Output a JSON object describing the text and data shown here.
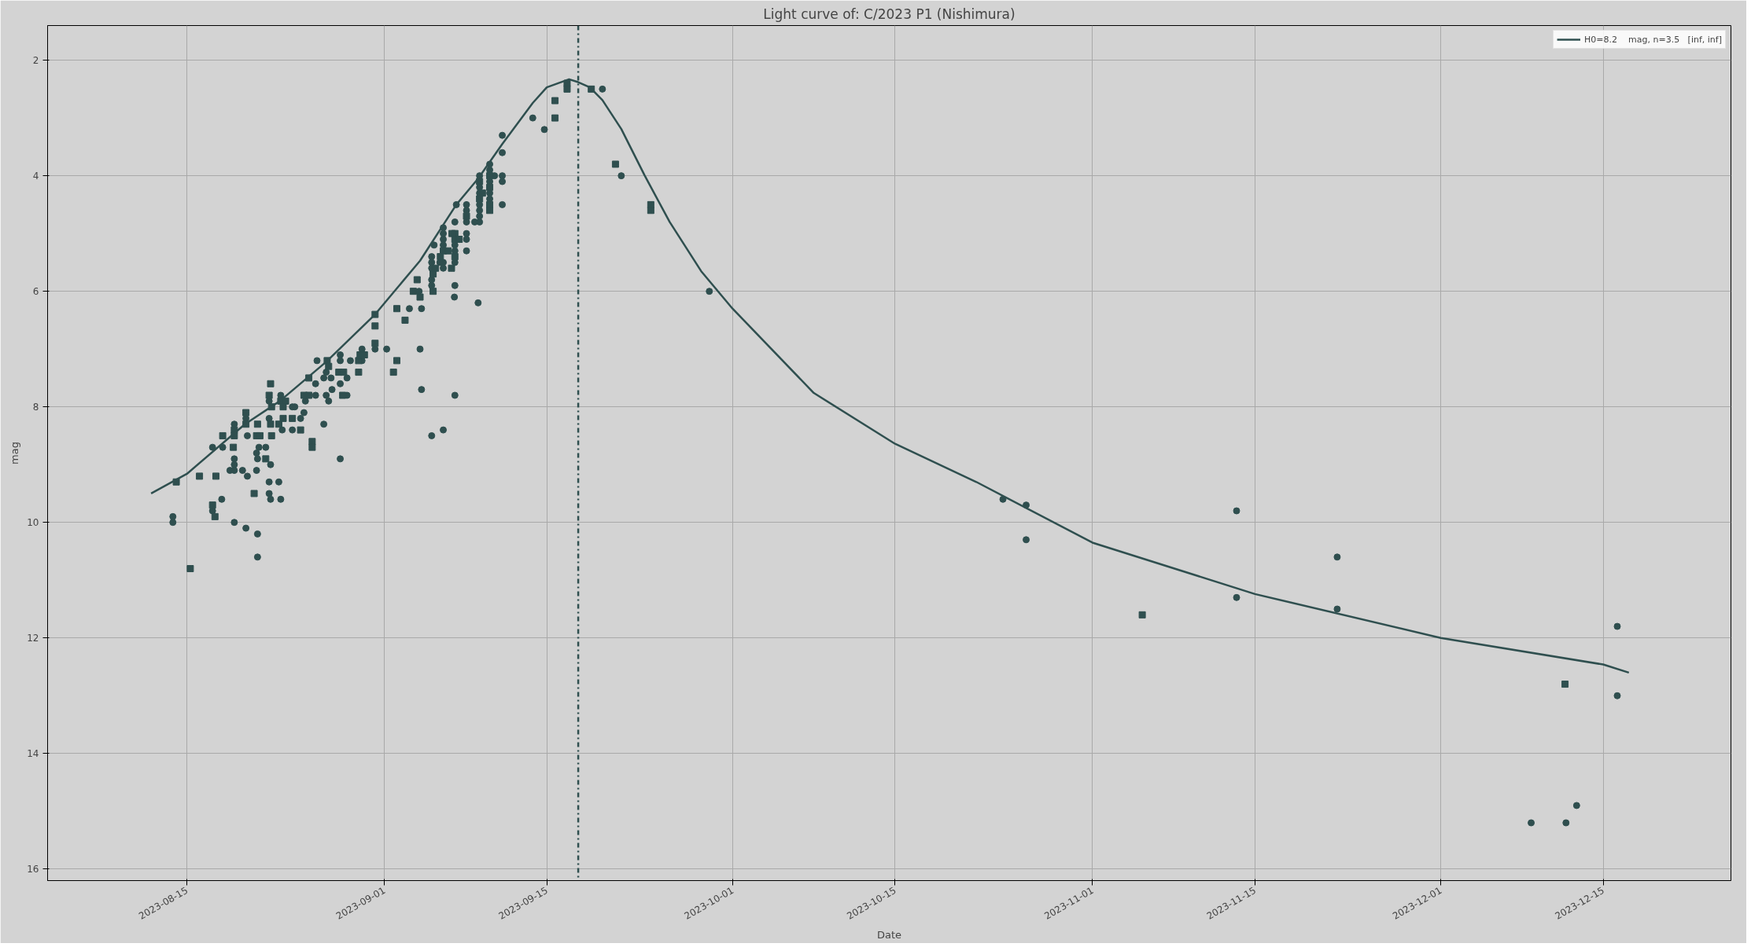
{
  "chart_data": {
    "type": "scatter",
    "title": "Light curve of: C/2023 P1 (Nishimura)",
    "xlabel": "Date",
    "ylabel": "mag",
    "xlim": [
      "2023-08-03",
      "2023-12-26"
    ],
    "xticks": [
      "2023-08-15",
      "2023-09-01",
      "2023-09-15",
      "2023-10-01",
      "2023-10-15",
      "2023-11-01",
      "2023-11-15",
      "2023-12-01",
      "2023-12-15"
    ],
    "ylim": [
      16.2,
      1.4
    ],
    "yticks": [
      2,
      4,
      6,
      8,
      10,
      12,
      14,
      16
    ],
    "grid": true,
    "legend": "top right",
    "ref_lines": [
      {
        "axis": "x",
        "value": "2023-09-17T17:00",
        "color": "#2f4f4f",
        "line_style": "dashdot"
      }
    ],
    "series": [
      {
        "marker": "circle",
        "color": "#2f4f4f",
        "x": [
          "2023-08-13T19:00",
          "2023-08-13T19:00",
          "2023-08-17T05:00",
          "2023-08-17T05:00",
          "2023-08-18T00:00",
          "2023-08-18T02:00",
          "2023-08-19T02:00",
          "2023-08-19T02:00",
          "2023-08-19T02:00",
          "2023-08-18T17:00",
          "2023-08-19T02:00",
          "2023-08-19T02:00",
          "2023-08-19T19:00",
          "2023-08-20T05:00",
          "2023-08-20T02:00",
          "2023-08-20T05:00",
          "2023-08-20T02:00",
          "2023-08-21T05:00",
          "2023-08-21T00:00",
          "2023-08-21T02:00",
          "2023-08-21T00:00",
          "2023-08-21T02:00",
          "2023-08-21T02:00",
          "2023-08-22T02:00",
          "2023-08-22T02:00",
          "2023-08-21T19:00",
          "2023-08-22T05:00",
          "2023-08-22T02:00",
          "2023-08-22T22:00",
          "2023-08-22T02:00",
          "2023-08-22T05:00",
          "2023-08-23T02:00",
          "2023-08-23T02:00",
          "2023-08-23T05:00",
          "2023-08-24T02:00",
          "2023-08-24T07:00",
          "2023-08-24T19:00",
          "2023-08-24T02:00",
          "2023-08-25T02:00",
          "2023-08-25T05:00",
          "2023-08-26T02:00",
          "2023-08-26T02:00",
          "2023-08-26T05:00",
          "2023-08-26T19:00",
          "2023-08-27T00:00",
          "2023-08-26T19:00",
          "2023-08-27T00:00",
          "2023-08-27T05:00",
          "2023-08-27T10:00",
          "2023-08-27T12:00",
          "2023-08-28T05:00",
          "2023-08-28T05:00",
          "2023-08-28T05:00",
          "2023-08-28T19:00",
          "2023-08-28T05:00",
          "2023-08-28T19:00",
          "2023-08-29T02:00",
          "2023-08-30T02:00",
          "2023-08-30T02:00",
          "2023-08-31T05:00",
          "2023-09-01T05:00",
          "2023-09-13T19:00",
          "2023-09-14T19:00",
          "2023-09-11T04:00",
          "2023-09-11T04:00",
          "2023-09-11T04:00",
          "2023-09-11T04:00",
          "2023-09-11T04:00",
          "2023-09-10T12:00",
          "2023-09-10T02:00",
          "2023-09-10T02:00",
          "2023-09-10T02:00",
          "2023-09-10T02:00",
          "2023-09-10T02:00",
          "2023-09-09T05:00",
          "2023-09-09T05:00",
          "2023-09-09T05:00",
          "2023-09-09T05:00",
          "2023-09-09T05:00",
          "2023-09-09T05:00",
          "2023-09-09T05:00",
          "2023-09-08T19:00",
          "2023-09-09T02:00",
          "2023-09-08T02:00",
          "2023-09-08T02:00",
          "2023-09-08T02:00",
          "2023-09-08T02:00",
          "2023-09-08T02:00",
          "2023-09-08T02:00",
          "2023-09-07T05:00",
          "2023-09-07T02:00",
          "2023-09-07T02:00",
          "2023-09-07T02:00",
          "2023-09-07T02:00",
          "2023-09-07T02:00",
          "2023-09-07T01:00",
          "2023-09-06T02:00",
          "2023-09-06T02:00",
          "2023-09-06T02:00",
          "2023-09-06T02:00",
          "2023-09-06T02:00",
          "2023-09-06T02:00",
          "2023-09-05T19:00",
          "2023-09-05T07:00",
          "2023-09-05T02:00",
          "2023-09-05T02:00",
          "2023-09-05T02:00",
          "2023-09-05T02:00",
          "2023-09-05T02:00",
          "2023-09-04T00:00",
          "2023-09-03T04:00",
          "2023-09-04T05:00",
          "2023-09-04T02:00",
          "2023-09-04T05:00",
          "2023-09-07T02:00",
          "2023-09-06T02:00",
          "2023-09-05T02:00",
          "2023-09-19T19:00",
          "2023-09-21T10:00",
          "2023-09-29T00:00",
          "2023-10-24T07:00",
          "2023-10-26T07:00",
          "2023-10-26T07:00",
          "2023-11-13T10:00",
          "2023-11-13T10:00",
          "2023-11-22T02:00",
          "2023-11-22T02:00",
          "2023-12-08T19:00",
          "2023-12-11T19:00",
          "2023-12-12T17:00",
          "2023-12-16T05:00",
          "2023-12-16T05:00"
        ],
        "values": [
          9.9,
          10.0,
          8.7,
          9.8,
          9.6,
          8.7,
          8.3,
          8.9,
          9.0,
          9.1,
          9.1,
          10.0,
          9.1,
          9.2,
          8.2,
          8.5,
          10.1,
          8.7,
          8.8,
          8.9,
          9.1,
          10.2,
          10.6,
          7.9,
          8.2,
          8.7,
          9.0,
          9.3,
          9.3,
          9.5,
          9.6,
          9.6,
          7.8,
          8.4,
          8.0,
          8.0,
          8.2,
          8.4,
          8.1,
          7.9,
          7.6,
          7.8,
          7.2,
          8.3,
          7.4,
          7.5,
          7.8,
          7.9,
          7.5,
          7.7,
          7.1,
          7.2,
          7.6,
          7.8,
          8.9,
          7.5,
          7.2,
          7.2,
          7.0,
          7.0,
          7.0,
          3.0,
          3.2,
          3.3,
          3.6,
          4.0,
          4.1,
          4.5,
          4.0,
          3.8,
          3.9,
          4.1,
          4.3,
          4.4,
          4.0,
          4.2,
          4.3,
          4.5,
          4.6,
          4.7,
          4.8,
          4.8,
          6.2,
          4.5,
          4.6,
          4.8,
          5.0,
          5.1,
          5.3,
          4.5,
          4.8,
          5.2,
          5.3,
          5.5,
          5.9,
          6.1,
          4.9,
          5.0,
          5.1,
          5.2,
          5.5,
          5.6,
          5.5,
          5.2,
          5.4,
          5.5,
          5.6,
          5.8,
          5.9,
          6.0,
          6.3,
          6.3,
          7.0,
          7.7,
          7.8,
          8.4,
          8.5,
          2.5,
          4.0,
          6.0,
          9.6,
          9.7,
          10.3,
          9.8,
          11.3,
          10.6,
          11.5,
          15.2,
          15.2,
          14.9,
          11.8,
          13.0
        ]
      },
      {
        "marker": "square",
        "color": "#2f4f4f",
        "x": [
          "2023-08-14T02:00",
          "2023-08-15T07:00",
          "2023-08-16T02:00",
          "2023-08-17T05:00",
          "2023-08-17T10:00",
          "2023-08-17T12:00",
          "2023-08-18T02:00",
          "2023-08-19T02:00",
          "2023-08-19T02:00",
          "2023-08-19T00:00",
          "2023-08-20T02:00",
          "2023-08-20T02:00",
          "2023-08-21T02:00",
          "2023-08-21T00:00",
          "2023-08-21T07:00",
          "2023-08-20T19:00",
          "2023-08-22T05:00",
          "2023-08-22T02:00",
          "2023-08-22T07:00",
          "2023-08-22T05:00",
          "2023-08-22T07:00",
          "2023-08-21T19:00",
          "2023-08-23T02:00",
          "2023-08-23T12:00",
          "2023-08-23T07:00",
          "2023-08-23T07:00",
          "2023-08-22T22:00",
          "2023-08-24T02:00",
          "2023-08-24T19:00",
          "2023-08-25T02:00",
          "2023-08-25T12:00",
          "2023-08-25T12:00",
          "2023-08-25T19:00",
          "2023-08-25T19:00",
          "2023-08-27T02:00",
          "2023-08-27T05:00",
          "2023-08-28T02:00",
          "2023-08-28T12:00",
          "2023-08-28T10:00",
          "2023-08-29T19:00",
          "2023-08-29T22:00",
          "2023-08-30T07:00",
          "2023-08-29T19:00",
          "2023-08-31T05:00",
          "2023-08-31T05:00",
          "2023-08-31T05:00",
          "2023-09-01T19:00",
          "2023-09-10T02:00",
          "2023-09-10T02:00",
          "2023-09-10T02:00",
          "2023-09-10T02:00",
          "2023-09-09T11:00",
          "2023-09-09T05:00",
          "2023-09-09T05:00",
          "2023-09-08T02:00",
          "2023-09-07T02:00",
          "2023-09-07T02:00",
          "2023-09-07T11:00",
          "2023-09-07T02:00",
          "2023-09-06T20:00",
          "2023-09-06T02:00",
          "2023-09-06T12:00",
          "2023-09-05T20:00",
          "2023-09-06T19:00",
          "2023-09-05T10:00",
          "2023-09-05T05:00",
          "2023-09-05T05:00",
          "2023-09-03T20:00",
          "2023-09-03T12:00",
          "2023-09-04T02:00",
          "2023-09-02T02:00",
          "2023-09-02T19:00",
          "2023-09-02T02:00",
          "2023-09-15T17:00",
          "2023-09-15T17:00",
          "2023-09-16T18:00",
          "2023-09-16T18:00",
          "2023-09-18T20:00",
          "2023-09-20T22:00",
          "2023-09-23T23:00",
          "2023-09-23T23:00",
          "2023-11-05T07:00",
          "2023-12-11T17:00"
        ],
        "values": [
          9.3,
          10.8,
          9.2,
          9.7,
          9.9,
          9.2,
          8.5,
          8.4,
          8.5,
          8.7,
          8.1,
          8.3,
          8.3,
          8.5,
          8.5,
          9.5,
          7.6,
          7.8,
          8.0,
          8.3,
          8.5,
          8.9,
          7.9,
          7.9,
          8.0,
          8.2,
          8.3,
          8.2,
          8.4,
          7.8,
          7.8,
          7.5,
          8.6,
          8.7,
          7.2,
          7.3,
          7.4,
          7.4,
          7.8,
          7.2,
          7.1,
          7.1,
          7.4,
          6.4,
          6.6,
          6.9,
          7.4,
          4.0,
          4.2,
          4.5,
          4.6,
          4.3,
          4.1,
          4.4,
          4.7,
          5.0,
          5.1,
          5.1,
          5.4,
          5.0,
          5.3,
          5.3,
          5.4,
          5.6,
          5.6,
          5.7,
          6.0,
          5.8,
          6.0,
          6.1,
          6.3,
          6.5,
          7.2,
          2.7,
          3.0,
          2.4,
          2.5,
          2.5,
          3.8,
          4.5,
          4.6,
          11.6,
          12.8
        ]
      },
      {
        "type": "line",
        "name": "H0=8.2    mag, n=3.5   [inf, inf]",
        "color": "#2f4f4f",
        "line_style": "solid",
        "x": [
          "2023-08-11T22:00",
          "2023-08-15",
          "2023-08-20",
          "2023-08-23",
          "2023-08-27",
          "2023-08-31T05:00",
          "2023-09-04T02:00",
          "2023-09-07T05:00",
          "2023-09-09T02:00",
          "2023-09-11T04:00",
          "2023-09-13T19:00",
          "2023-09-15",
          "2023-09-16T22:00",
          "2023-09-17T17:00",
          "2023-09-18T17:00",
          "2023-09-19T19:00",
          "2023-09-21T10:00",
          "2023-09-23T10:00",
          "2023-09-25T14:00",
          "2023-09-28T07:00",
          "2023-10-01",
          "2023-10-08",
          "2023-10-15",
          "2023-10-22",
          "2023-11-01",
          "2023-11-15",
          "2023-12-01",
          "2023-12-15",
          "2023-12-17T05:00"
        ],
        "values": [
          9.5,
          9.16,
          8.3,
          7.9,
          7.22,
          6.4,
          5.47,
          4.5,
          4.05,
          3.45,
          2.74,
          2.47,
          2.33,
          2.38,
          2.47,
          2.69,
          3.19,
          3.99,
          4.8,
          5.65,
          6.3,
          7.76,
          8.64,
          9.3,
          10.35,
          11.24,
          12.0,
          12.46,
          12.6
        ]
      }
    ]
  }
}
